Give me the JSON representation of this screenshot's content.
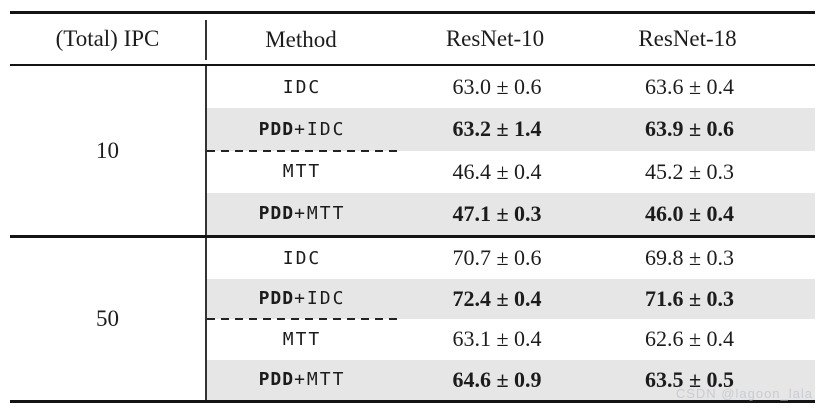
{
  "table": {
    "headers": [
      "(Total) IPC",
      "Method",
      "ResNet-10",
      "ResNet-18"
    ],
    "groups": [
      {
        "ipc": "10",
        "rows": [
          {
            "pdd": "",
            "rest": "IDC",
            "r10": "63.0 ± 0.6",
            "r18": "63.6 ± 0.4"
          },
          {
            "pdd": "PDD",
            "rest": "+IDC",
            "r10": "63.2 ± 1.4",
            "r18": "63.9 ± 0.6"
          },
          {
            "pdd": "",
            "rest": "MTT",
            "r10": "46.4 ± 0.4",
            "r18": "45.2 ± 0.3"
          },
          {
            "pdd": "PDD",
            "rest": "+MTT",
            "r10": "47.1 ± 0.3",
            "r18": "46.0 ± 0.4"
          }
        ]
      },
      {
        "ipc": "50",
        "rows": [
          {
            "pdd": "",
            "rest": "IDC",
            "r10": "70.7 ± 0.6",
            "r18": "69.8 ± 0.3"
          },
          {
            "pdd": "PDD",
            "rest": "+IDC",
            "r10": "72.4 ± 0.4",
            "r18": "71.6 ± 0.3"
          },
          {
            "pdd": "",
            "rest": "MTT",
            "r10": "63.1 ± 0.4",
            "r18": "62.6 ± 0.4"
          },
          {
            "pdd": "PDD",
            "rest": "+MTT",
            "r10": "64.6 ± 0.9",
            "r18": "63.5 ± 0.5"
          }
        ]
      }
    ]
  },
  "watermark": {
    "text": "CSDN @lagoon_lala"
  },
  "colors": {
    "highlight_row_bg": "#e6e6e6",
    "rule": "#141414",
    "text": "#1c1c1c",
    "watermark": "#c8ccd4"
  }
}
